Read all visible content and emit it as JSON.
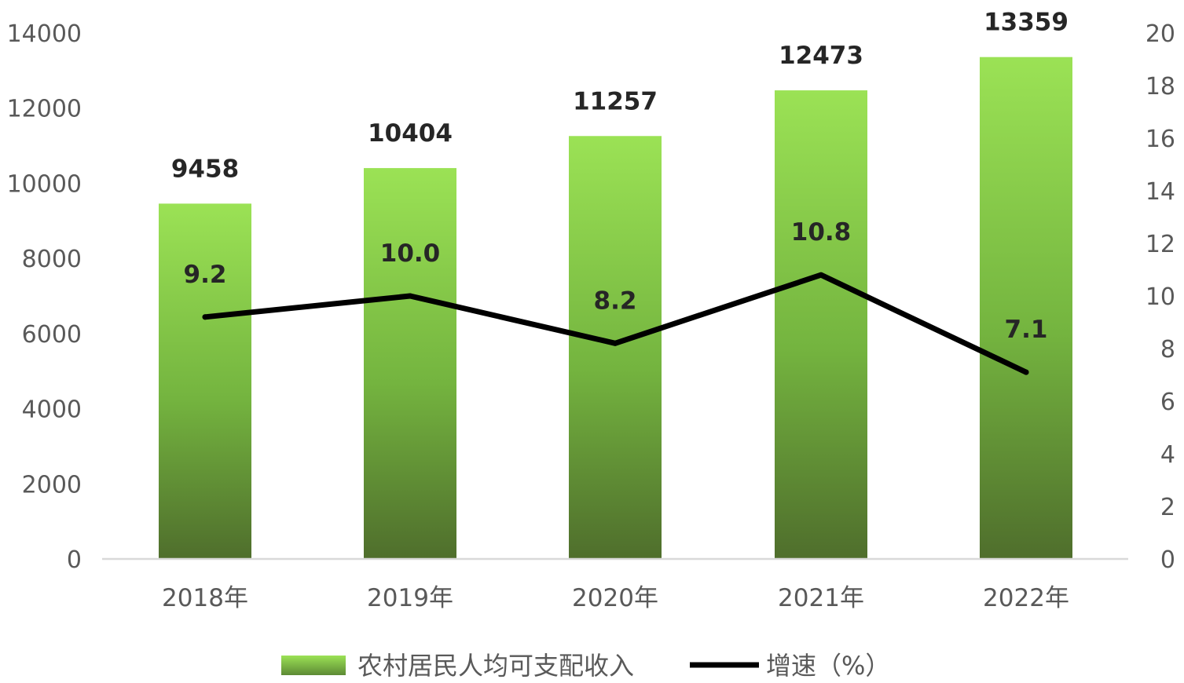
{
  "chart_data": {
    "type": "bar",
    "categories": [
      "2018年",
      "2019年",
      "2020年",
      "2021年",
      "2022年"
    ],
    "series": [
      {
        "name": "农村居民人均可支配收入",
        "type": "bar",
        "axis": "left",
        "values": [
          9458,
          10404,
          11257,
          12473,
          13359
        ],
        "color": "#7dc63f"
      },
      {
        "name": "增速（%）",
        "type": "line",
        "axis": "right",
        "values": [
          9.2,
          10.0,
          8.2,
          10.8,
          7.1
        ],
        "color": "#000000"
      }
    ],
    "value_labels": {
      "bar": [
        "9458",
        "10404",
        "11257",
        "12473",
        "13359"
      ],
      "line": [
        "9.2",
        "10.0",
        "8.2",
        "10.8",
        "7.1"
      ]
    },
    "y_left": {
      "ylim": [
        0,
        14000
      ],
      "ticks": [
        "0",
        "2000",
        "4000",
        "6000",
        "8000",
        "10000",
        "12000",
        "14000"
      ]
    },
    "y_right": {
      "ylim": [
        0,
        20
      ],
      "ticks": [
        "0",
        "2",
        "4",
        "6",
        "8",
        "10",
        "12",
        "14",
        "16",
        "18",
        "20"
      ]
    },
    "grid": false,
    "legend_position": "bottom",
    "title": "",
    "xlabel": "",
    "ylabel": ""
  }
}
